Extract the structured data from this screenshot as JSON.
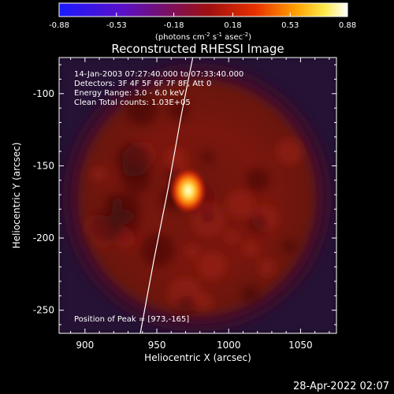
{
  "chart_data": {
    "type": "heatmap",
    "title": "Reconstructed RHESSI Image",
    "xlabel": "Heliocentric X (arcsec)",
    "ylabel": "Heliocentric Y (arcsec)",
    "xlim": [
      882,
      1075
    ],
    "ylim": [
      -266,
      -75
    ],
    "xticks": [
      900,
      950,
      1000,
      1050
    ],
    "xtick_labels": [
      "900",
      "950",
      "1000",
      "1050"
    ],
    "yticks": [
      -100,
      -150,
      -200,
      -250
    ],
    "ytick_labels": [
      "-100",
      "-150",
      "-200",
      "-250"
    ],
    "colorbar": {
      "min": -0.88,
      "max": 0.88,
      "ticks": [
        -0.88,
        -0.53,
        -0.18,
        0.18,
        0.53,
        0.88
      ],
      "tick_labels": [
        "-0.88",
        "-0.53",
        "-0.18",
        "0.18",
        "0.53",
        "0.88"
      ],
      "unit_prefix": "(photons cm",
      "unit_sup1": "-2",
      "unit_mid1": " s",
      "unit_sup2": "-1",
      "unit_mid2": " asec",
      "unit_sup3": "-2",
      "unit_suffix": ")",
      "colormap": "blue-purple-red-yellow-white"
    },
    "annotations": [
      "14-Jan-2003 07:27:40.000 to 07:33:40.000",
      "Detectors: 3F 4F 5F 6F 7F 8F, Att 0",
      "Energy Range: 3.0 - 6.0 keV",
      "Clean    Total counts: 1.03E+05"
    ],
    "peak_label": "Position of Peak = [973,-165]",
    "peak": {
      "x": 973,
      "y": -165,
      "value": 0.88
    },
    "disk_center": {
      "x": 978,
      "y": -172
    },
    "disk_radius": 88,
    "limb_curve": [
      [
        938.5,
        -266
      ],
      [
        948,
        -215
      ],
      [
        958,
        -165
      ],
      [
        967,
        -115
      ],
      [
        975,
        -75
      ]
    ]
  },
  "footer": {
    "timestamp": "28-Apr-2022 02:07"
  }
}
